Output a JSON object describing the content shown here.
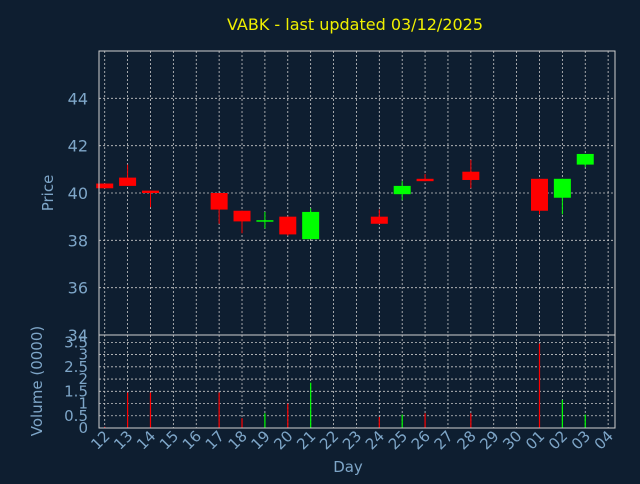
{
  "title": "VABK - last updated 03/12/2025",
  "colors": {
    "background": "#0e1e30",
    "title": "#f0f000",
    "axis_text": "#7ea6c8",
    "grid": "#c8c8c8",
    "frame": "#d0d0d0",
    "up": "#00ff00",
    "down": "#ff0000"
  },
  "chart_data": [
    {
      "type": "candlestick",
      "ylabel": "Price",
      "ylim": [
        34,
        46
      ],
      "yticks": [
        36,
        38,
        40,
        42,
        44
      ],
      "x_ticks": [
        "12",
        "13",
        "14",
        "15",
        "16",
        "17",
        "18",
        "19",
        "20",
        "21",
        "22",
        "23",
        "24",
        "25",
        "26",
        "27",
        "28",
        "29",
        "30",
        "01",
        "02",
        "03",
        "04"
      ],
      "xlim": [
        -0.25,
        22.3
      ],
      "grid": true,
      "candles": [
        {
          "x": 0.0,
          "open": 40.4,
          "close": 40.2,
          "high": 40.4,
          "low": 40.2
        },
        {
          "x": 1.0,
          "open": 40.65,
          "close": 40.3,
          "high": 41.2,
          "low": 40.3
        },
        {
          "x": 2.0,
          "open": 40.1,
          "close": 40.0,
          "high": 40.1,
          "low": 39.4
        },
        {
          "x": 5.0,
          "open": 40.0,
          "close": 39.3,
          "high": 40.0,
          "low": 38.7
        },
        {
          "x": 6.0,
          "open": 39.25,
          "close": 38.8,
          "high": 39.25,
          "low": 38.3
        },
        {
          "x": 7.0,
          "open": 38.85,
          "close": 38.85,
          "high": 39.2,
          "low": 38.5
        },
        {
          "x": 8.0,
          "open": 39.0,
          "close": 38.25,
          "high": 39.0,
          "low": 38.2
        },
        {
          "x": 9.0,
          "open": 38.05,
          "close": 39.2,
          "high": 39.35,
          "low": 38.05
        },
        {
          "x": 12.0,
          "open": 39.0,
          "close": 38.7,
          "high": 39.3,
          "low": 38.7
        },
        {
          "x": 13.0,
          "open": 39.95,
          "close": 40.3,
          "high": 40.5,
          "low": 39.7
        },
        {
          "x": 14.0,
          "open": 40.6,
          "close": 40.5,
          "high": 40.8,
          "low": 40.5
        },
        {
          "x": 16.0,
          "open": 40.9,
          "close": 40.55,
          "high": 41.4,
          "low": 40.2
        },
        {
          "x": 19.0,
          "open": 40.6,
          "close": 39.25,
          "high": 40.6,
          "low": 39.1
        },
        {
          "x": 20.0,
          "open": 39.8,
          "close": 40.6,
          "high": 40.6,
          "low": 39.1
        },
        {
          "x": 21.0,
          "open": 41.2,
          "close": 41.65,
          "high": 41.65,
          "low": 41.1
        }
      ]
    },
    {
      "type": "bar",
      "ylabel": "Volume (0000)",
      "xlabel": "Day",
      "ylim": [
        0,
        3.8
      ],
      "yticks": [
        0,
        0.5,
        1,
        1.5,
        2,
        2.5,
        3,
        3.5
      ],
      "ytick_labels": [
        "0",
        "0.5",
        "1",
        "1.5",
        "2",
        "2.5",
        "3",
        "3.5"
      ],
      "bars": [
        {
          "x": 0.0,
          "value": 0.05,
          "dir": "down"
        },
        {
          "x": 1.0,
          "value": 1.45,
          "dir": "down"
        },
        {
          "x": 2.0,
          "value": 1.45,
          "dir": "down"
        },
        {
          "x": 5.0,
          "value": 1.45,
          "dir": "down"
        },
        {
          "x": 6.0,
          "value": 0.4,
          "dir": "down"
        },
        {
          "x": 7.0,
          "value": 0.6,
          "dir": "up"
        },
        {
          "x": 8.0,
          "value": 1.0,
          "dir": "down"
        },
        {
          "x": 9.0,
          "value": 1.85,
          "dir": "up"
        },
        {
          "x": 12.0,
          "value": 0.45,
          "dir": "down"
        },
        {
          "x": 13.0,
          "value": 0.55,
          "dir": "up"
        },
        {
          "x": 14.0,
          "value": 0.6,
          "dir": "down"
        },
        {
          "x": 16.0,
          "value": 0.6,
          "dir": "down"
        },
        {
          "x": 19.0,
          "value": 3.45,
          "dir": "down"
        },
        {
          "x": 20.0,
          "value": 1.15,
          "dir": "up"
        },
        {
          "x": 21.0,
          "value": 0.55,
          "dir": "up"
        }
      ]
    }
  ]
}
